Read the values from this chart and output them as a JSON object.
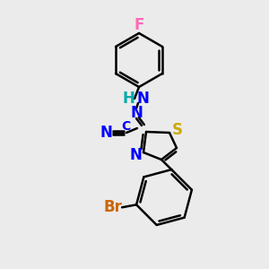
{
  "background_color": "#ebebeb",
  "bond_color": "black",
  "bond_width": 1.8,
  "atom_labels": {
    "F": {
      "color": "#ff69b4",
      "fontsize": 12,
      "fontweight": "bold"
    },
    "N": {
      "color": "#0000ff",
      "fontsize": 12,
      "fontweight": "bold"
    },
    "H": {
      "color": "#00aaaa",
      "fontsize": 12,
      "fontweight": "bold"
    },
    "S": {
      "color": "#ccaa00",
      "fontsize": 12,
      "fontweight": "bold"
    },
    "C": {
      "color": "#0000ff",
      "fontsize": 10,
      "fontweight": "bold"
    },
    "Br": {
      "color": "#cc6600",
      "fontsize": 12,
      "fontweight": "bold"
    }
  },
  "figsize": [
    3.0,
    3.0
  ],
  "dpi": 100
}
